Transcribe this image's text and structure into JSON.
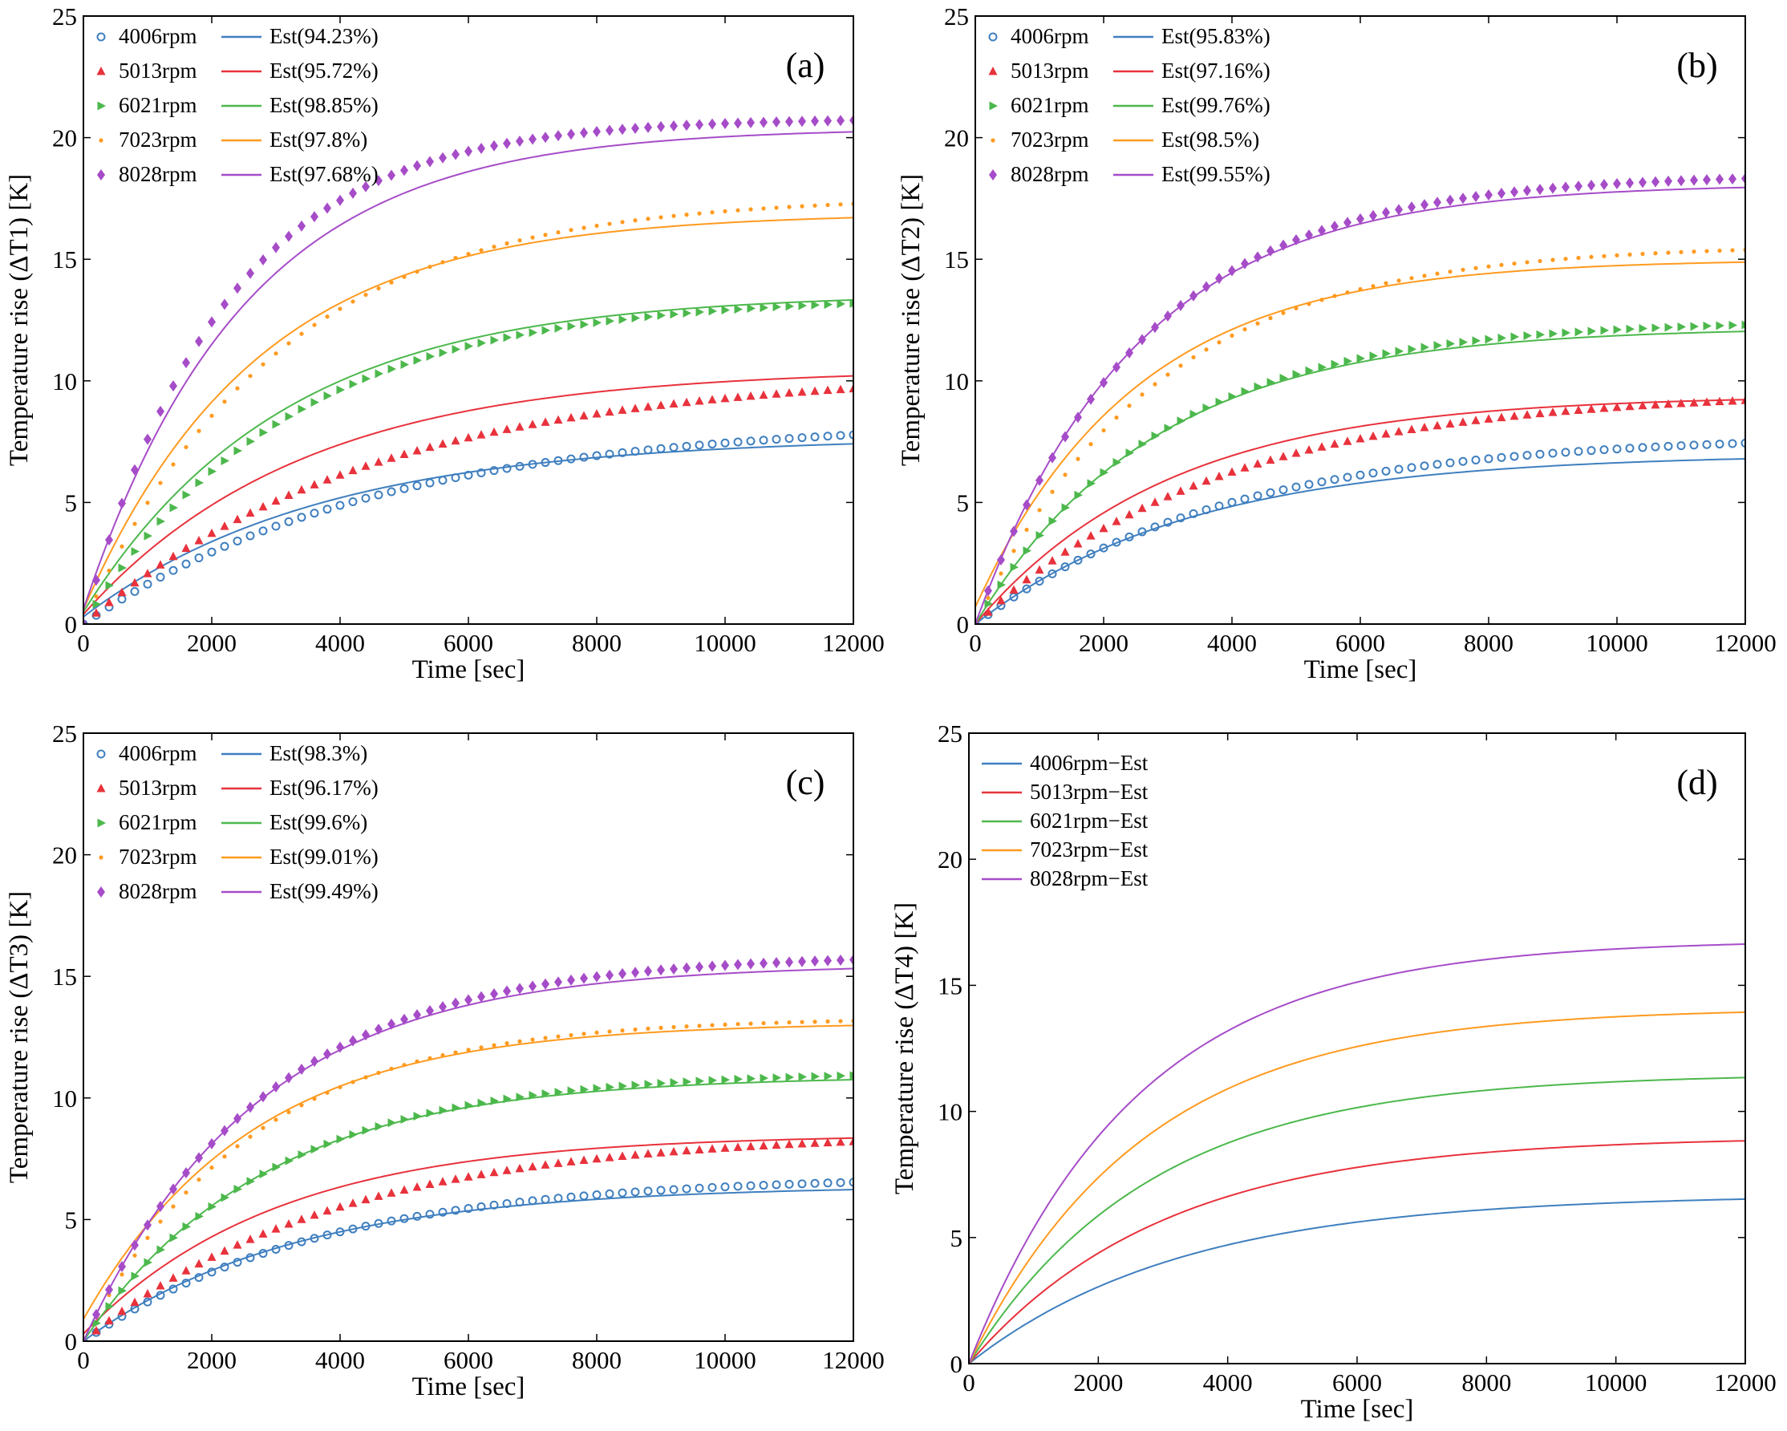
{
  "figure": {
    "colors": {
      "4006rpm": "#3f7fbf",
      "5013rpm": "#e8323c",
      "6021rpm": "#4cb84c",
      "7023rpm": "#ff9a1f",
      "8028rpm": "#a64cc8"
    }
  },
  "chart_data": [
    {
      "type": "line",
      "panel_label": "(a)",
      "xlabel": "Time [sec]",
      "ylabel": "Temperature rise (ΔT1) [K]",
      "xlim": [
        0,
        12000
      ],
      "ylim": [
        0,
        25
      ],
      "xticks": [
        0,
        2000,
        4000,
        6000,
        8000,
        10000,
        12000
      ],
      "yticks": [
        0,
        5,
        10,
        15,
        20,
        25
      ],
      "legend_position": "top-left",
      "series": [
        {
          "name": "4006rpm",
          "est_label": "Est(94.23%)",
          "marker": "circle",
          "measured_final": 8.4,
          "measured_tau": 4600,
          "est_final": 7.7,
          "est_tau": 3700,
          "est_offset": 0.3
        },
        {
          "name": "5013rpm",
          "est_label": "Est(95.72%)",
          "marker": "triangle-up",
          "measured_final": 10.4,
          "measured_tau": 4500,
          "est_final": 10.5,
          "est_tau": 3400,
          "est_offset": 0.4
        },
        {
          "name": "6021rpm",
          "est_label": "Est(98.85%)",
          "marker": "triangle-right",
          "measured_final": 13.5,
          "measured_tau": 3200,
          "est_final": 13.6,
          "est_tau": 3100,
          "est_offset": 0.5
        },
        {
          "name": "7023rpm",
          "est_label": "Est(97.8%)",
          "marker": "dot",
          "measured_final": 17.6,
          "measured_tau": 3000,
          "est_final": 16.9,
          "est_tau": 2700,
          "est_offset": 0.6
        },
        {
          "name": "8028rpm",
          "est_label": "Est(97.68%)",
          "marker": "diamond",
          "measured_final": 20.8,
          "measured_tau": 2200,
          "est_final": 20.4,
          "est_tau": 2500,
          "est_offset": 0.6
        }
      ]
    },
    {
      "type": "line",
      "panel_label": "(b)",
      "xlabel": "Time [sec]",
      "ylabel": "Temperature rise (ΔT2) [K]",
      "xlim": [
        0,
        12000
      ],
      "ylim": [
        0,
        25
      ],
      "xticks": [
        0,
        2000,
        4000,
        6000,
        8000,
        10000,
        12000
      ],
      "yticks": [
        0,
        5,
        10,
        15,
        20,
        25
      ],
      "legend_position": "top-left",
      "series": [
        {
          "name": "4006rpm",
          "est_label": "Est(95.83%)",
          "marker": "circle",
          "measured_final": 7.8,
          "measured_tau": 3900,
          "est_final": 7.0,
          "est_tau": 3400,
          "est_offset": 0.0
        },
        {
          "name": "5013rpm",
          "est_label": "Est(97.16%)",
          "marker": "triangle-up",
          "measured_final": 9.6,
          "measured_tau": 3800,
          "est_final": 9.4,
          "est_tau": 3000,
          "est_offset": 0.0
        },
        {
          "name": "6021rpm",
          "est_label": "Est(99.76%)",
          "marker": "triangle-right",
          "measured_final": 12.5,
          "measured_tau": 2900,
          "est_final": 12.2,
          "est_tau": 2800,
          "est_offset": 0.0
        },
        {
          "name": "7023rpm",
          "est_label": "Est(98.5%)",
          "marker": "dot",
          "measured_final": 15.6,
          "measured_tau": 2800,
          "est_final": 15.0,
          "est_tau": 2500,
          "est_offset": 0.7
        },
        {
          "name": "8028rpm",
          "est_label": "Est(99.55%)",
          "marker": "diamond",
          "measured_final": 18.5,
          "measured_tau": 2600,
          "est_final": 18.1,
          "est_tau": 2500,
          "est_offset": 0.0
        }
      ]
    },
    {
      "type": "line",
      "panel_label": "(c)",
      "xlabel": "Time [sec]",
      "ylabel": "Temperature rise (ΔT3) [K]",
      "xlim": [
        0,
        12000
      ],
      "ylim": [
        0,
        25
      ],
      "xticks": [
        0,
        2000,
        4000,
        6000,
        8000,
        10000,
        12000
      ],
      "yticks": [
        0,
        5,
        10,
        15,
        20,
        25
      ],
      "legend_position": "top-left",
      "series": [
        {
          "name": "4006rpm",
          "est_label": "Est(98.3%)",
          "marker": "circle",
          "measured_final": 6.8,
          "measured_tau": 3700,
          "est_final": 6.4,
          "est_tau": 3300,
          "est_offset": 0.0
        },
        {
          "name": "5013rpm",
          "est_label": "Est(96.17%)",
          "marker": "triangle-up",
          "measured_final": 8.6,
          "measured_tau": 3900,
          "est_final": 8.5,
          "est_tau": 3000,
          "est_offset": 0.3
        },
        {
          "name": "6021rpm",
          "est_label": "Est(99.6%)",
          "marker": "triangle-right",
          "measured_final": 11.1,
          "measured_tau": 2900,
          "est_final": 10.9,
          "est_tau": 2800,
          "est_offset": 0.0
        },
        {
          "name": "7023rpm",
          "est_label": "Est(99.01%)",
          "marker": "dot",
          "measured_final": 13.3,
          "measured_tau": 2600,
          "est_final": 13.1,
          "est_tau": 2600,
          "est_offset": 0.9
        },
        {
          "name": "8028rpm",
          "est_label": "Est(99.49%)",
          "marker": "diamond",
          "measured_final": 15.9,
          "measured_tau": 2800,
          "est_final": 15.5,
          "est_tau": 2700,
          "est_offset": 0.0
        }
      ]
    },
    {
      "type": "line",
      "panel_label": "(d)",
      "xlabel": "Time [sec]",
      "ylabel": "Temperature rise (ΔT4) [K]",
      "xlim": [
        0,
        12000
      ],
      "ylim": [
        0,
        25
      ],
      "xticks": [
        0,
        2000,
        4000,
        6000,
        8000,
        10000,
        12000
      ],
      "yticks": [
        0,
        5,
        10,
        15,
        20,
        25
      ],
      "legend_position": "top-left",
      "series": [
        {
          "name": "4006rpm",
          "est_label": "4006rpm−Est",
          "marker": "none",
          "est_final": 6.7,
          "est_tau": 3300,
          "est_offset": 0.0
        },
        {
          "name": "5013rpm",
          "est_label": "5013rpm−Est",
          "marker": "none",
          "est_final": 9.0,
          "est_tau": 3000,
          "est_offset": 0.0
        },
        {
          "name": "6021rpm",
          "est_label": "6021rpm−Est",
          "marker": "none",
          "est_final": 11.5,
          "est_tau": 2800,
          "est_offset": 0.0
        },
        {
          "name": "7023rpm",
          "est_label": "7023rpm−Est",
          "marker": "none",
          "est_final": 14.1,
          "est_tau": 2700,
          "est_offset": 0.0
        },
        {
          "name": "8028rpm",
          "est_label": "8028rpm−Est",
          "marker": "none",
          "est_final": 16.8,
          "est_tau": 2600,
          "est_offset": 0.0
        }
      ]
    }
  ]
}
